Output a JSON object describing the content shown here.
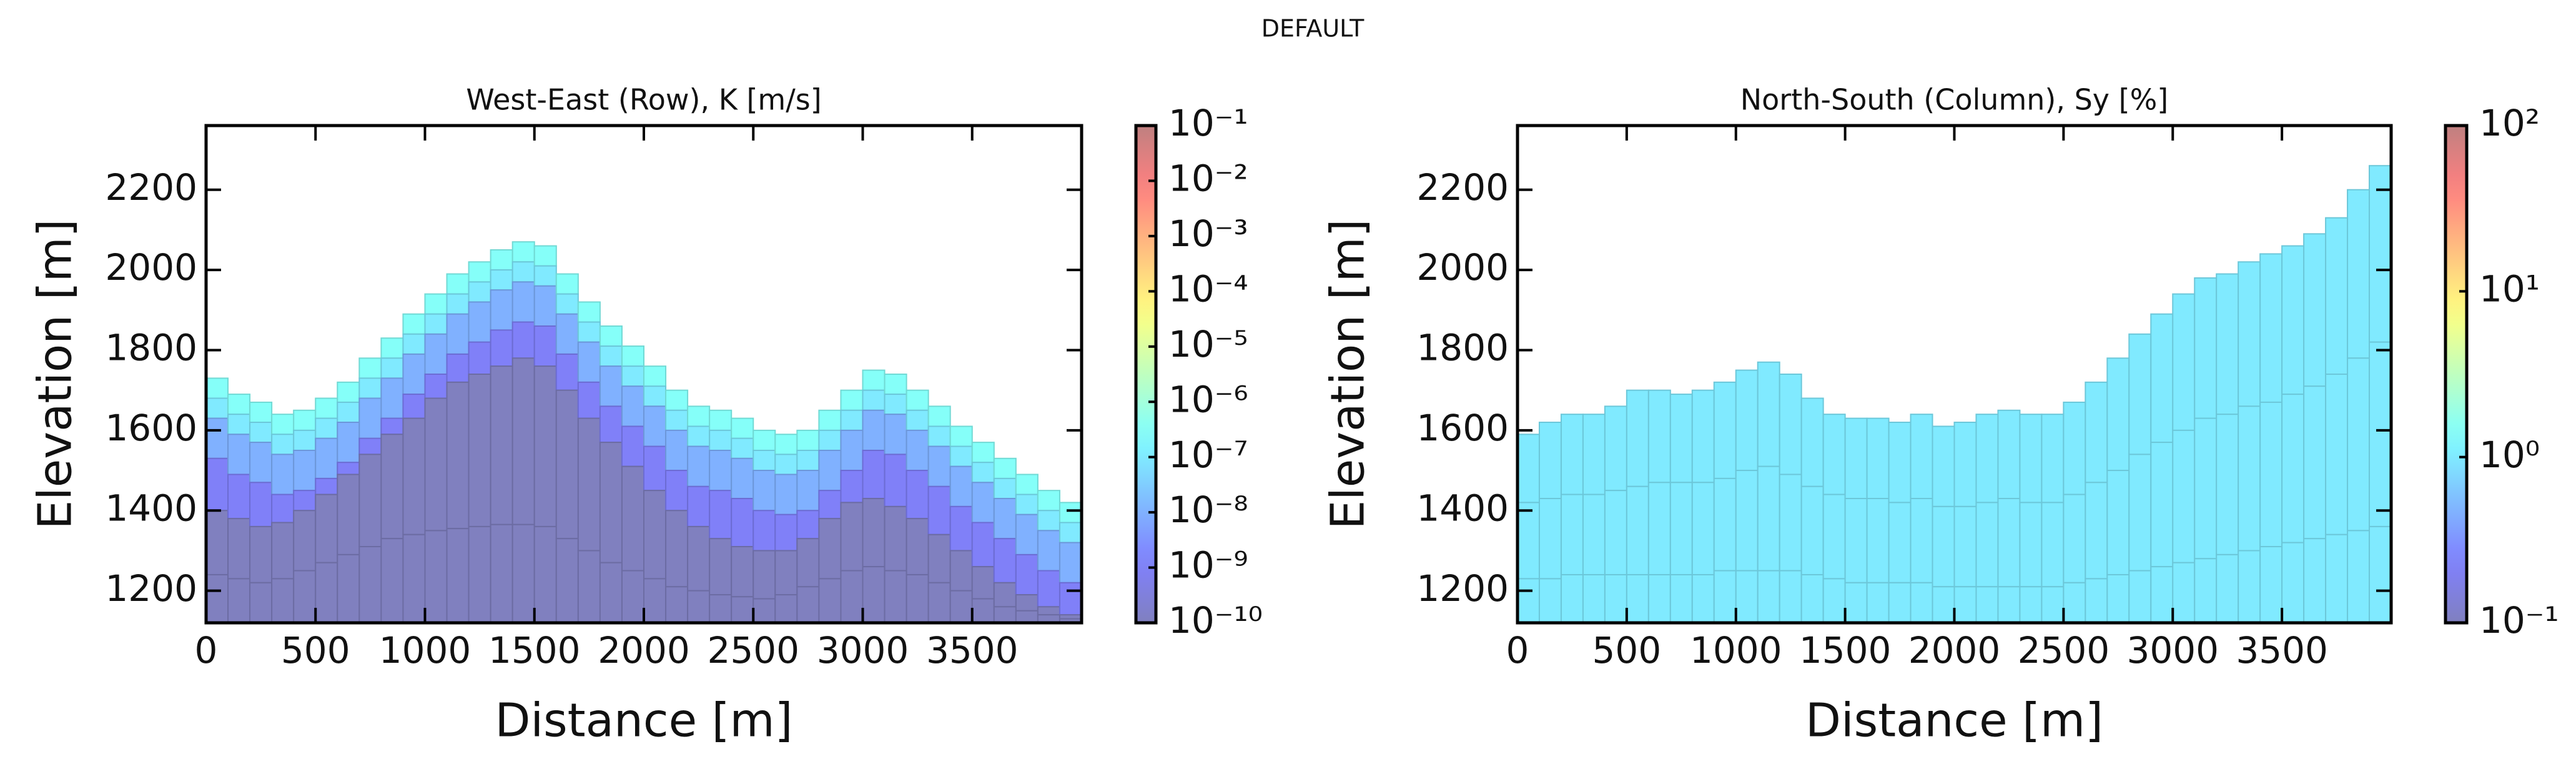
{
  "title": "DEFAULT",
  "chart_data": [
    {
      "type": "cross-section",
      "title": "West-East (Row), K [m/s]",
      "xlabel": "Distance [m]",
      "ylabel": "Elevation [m]",
      "xlim": [
        0,
        4000
      ],
      "xticks": [
        0,
        500,
        1000,
        1500,
        2000,
        2500,
        3000,
        3500
      ],
      "ylim": [
        1120,
        2360
      ],
      "yticks": [
        1200,
        1400,
        1600,
        1800,
        2000,
        2200
      ],
      "colormap": "jet",
      "alpha": 0.5,
      "log": true,
      "clim": [
        1e-10,
        0.1
      ],
      "cticks": [
        {
          "value": 1e-10,
          "label": "10⁻¹⁰"
        },
        {
          "value": 1e-09,
          "label": "10⁻⁹"
        },
        {
          "value": 1e-08,
          "label": "10⁻⁸"
        },
        {
          "value": 1e-07,
          "label": "10⁻⁷"
        },
        {
          "value": 1e-06,
          "label": "10⁻⁶"
        },
        {
          "value": 1e-05,
          "label": "10⁻⁵"
        },
        {
          "value": 0.0001,
          "label": "10⁻⁴"
        },
        {
          "value": 0.001,
          "label": "10⁻³"
        },
        {
          "value": 0.01,
          "label": "10⁻²"
        },
        {
          "value": 0.1,
          "label": "10⁻¹"
        }
      ],
      "x": [
        0,
        100,
        200,
        300,
        400,
        500,
        600,
        700,
        800,
        900,
        1000,
        1100,
        1200,
        1300,
        1400,
        1500,
        1600,
        1700,
        1800,
        1900,
        2000,
        2100,
        2200,
        2300,
        2400,
        2500,
        2600,
        2700,
        2800,
        2900,
        3000,
        3100,
        3200,
        3300,
        3400,
        3500,
        3600,
        3700,
        3800,
        3900
      ],
      "top": [
        1730,
        1690,
        1670,
        1640,
        1650,
        1680,
        1720,
        1780,
        1830,
        1890,
        1940,
        1990,
        2020,
        2050,
        2070,
        2060,
        1990,
        1920,
        1860,
        1810,
        1760,
        1700,
        1660,
        1650,
        1630,
        1600,
        1590,
        1600,
        1650,
        1700,
        1750,
        1740,
        1700,
        1660,
        1610,
        1570,
        1530,
        1490,
        1450,
        1420
      ],
      "layers": [
        {
          "value": 3e-07,
          "bottom": [
            1680,
            1640,
            1620,
            1590,
            1600,
            1630,
            1670,
            1730,
            1780,
            1840,
            1890,
            1940,
            1970,
            2000,
            2020,
            2010,
            1940,
            1870,
            1810,
            1760,
            1710,
            1650,
            1610,
            1600,
            1580,
            1550,
            1540,
            1550,
            1600,
            1650,
            1700,
            1690,
            1650,
            1610,
            1560,
            1520,
            1480,
            1440,
            1400,
            1370
          ]
        },
        {
          "value": 1e-07,
          "bottom": [
            1630,
            1590,
            1570,
            1540,
            1550,
            1580,
            1620,
            1680,
            1730,
            1790,
            1840,
            1890,
            1920,
            1950,
            1970,
            1960,
            1890,
            1820,
            1760,
            1710,
            1660,
            1600,
            1560,
            1550,
            1530,
            1500,
            1490,
            1500,
            1550,
            1600,
            1650,
            1640,
            1600,
            1560,
            1510,
            1470,
            1430,
            1390,
            1350,
            1320
          ]
        },
        {
          "value": 1e-08,
          "bottom": [
            1530,
            1490,
            1470,
            1440,
            1450,
            1480,
            1520,
            1580,
            1630,
            1690,
            1740,
            1790,
            1820,
            1850,
            1870,
            1860,
            1790,
            1720,
            1660,
            1610,
            1560,
            1500,
            1460,
            1450,
            1430,
            1400,
            1390,
            1400,
            1450,
            1500,
            1550,
            1540,
            1500,
            1460,
            1410,
            1370,
            1330,
            1290,
            1250,
            1220
          ]
        },
        {
          "value": 1e-09,
          "bottom": [
            1400,
            1380,
            1360,
            1370,
            1400,
            1440,
            1490,
            1540,
            1590,
            1630,
            1680,
            1720,
            1740,
            1760,
            1780,
            1760,
            1700,
            1630,
            1570,
            1510,
            1450,
            1400,
            1360,
            1330,
            1310,
            1300,
            1300,
            1330,
            1380,
            1420,
            1430,
            1410,
            1380,
            1340,
            1300,
            1260,
            1220,
            1190,
            1160,
            1140
          ]
        },
        {
          "value": 1e-10,
          "bottom": [
            1240,
            1230,
            1220,
            1230,
            1250,
            1270,
            1290,
            1310,
            1330,
            1340,
            1350,
            1355,
            1360,
            1365,
            1365,
            1360,
            1330,
            1300,
            1270,
            1250,
            1230,
            1210,
            1200,
            1190,
            1185,
            1180,
            1190,
            1210,
            1230,
            1250,
            1260,
            1250,
            1240,
            1220,
            1200,
            1180,
            1160,
            1150,
            1140,
            1130
          ]
        },
        {
          "value": 1e-10,
          "bottom": 1120
        }
      ]
    },
    {
      "type": "cross-section",
      "title": "North-South (Column), Sy [%]",
      "xlabel": "Distance [m]",
      "ylabel": "Elevation [m]",
      "xlim": [
        0,
        4000
      ],
      "xticks": [
        0,
        500,
        1000,
        1500,
        2000,
        2500,
        3000,
        3500
      ],
      "ylim": [
        1120,
        2360
      ],
      "yticks": [
        1200,
        1400,
        1600,
        1800,
        2000,
        2200
      ],
      "colormap": "jet",
      "alpha": 0.5,
      "log": true,
      "clim": [
        0.1,
        100
      ],
      "cticks": [
        {
          "value": 0.1,
          "label": "10⁻¹"
        },
        {
          "value": 1,
          "label": "10⁰"
        },
        {
          "value": 10,
          "label": "10¹"
        },
        {
          "value": 100,
          "label": "10²"
        }
      ],
      "x": [
        0,
        100,
        200,
        300,
        400,
        500,
        600,
        700,
        800,
        900,
        1000,
        1100,
        1200,
        1300,
        1400,
        1500,
        1600,
        1700,
        1800,
        1900,
        2000,
        2100,
        2200,
        2300,
        2400,
        2500,
        2600,
        2700,
        2800,
        2900,
        3000,
        3100,
        3200,
        3300,
        3400,
        3500,
        3600,
        3700,
        3800,
        3900
      ],
      "top": [
        1590,
        1620,
        1640,
        1640,
        1660,
        1700,
        1700,
        1690,
        1700,
        1720,
        1750,
        1770,
        1740,
        1680,
        1640,
        1630,
        1630,
        1620,
        1640,
        1610,
        1620,
        1640,
        1650,
        1640,
        1640,
        1670,
        1720,
        1780,
        1840,
        1890,
        1940,
        1980,
        1990,
        2020,
        2040,
        2060,
        2090,
        2130,
        2200,
        2260
      ],
      "layers": [
        {
          "value": 1,
          "bottom": [
            1420,
            1430,
            1440,
            1440,
            1450,
            1460,
            1470,
            1470,
            1470,
            1480,
            1500,
            1510,
            1490,
            1460,
            1440,
            1430,
            1430,
            1420,
            1430,
            1410,
            1410,
            1420,
            1430,
            1420,
            1420,
            1440,
            1470,
            1500,
            1540,
            1570,
            1600,
            1630,
            1640,
            1660,
            1670,
            1690,
            1710,
            1740,
            1780,
            1820
          ]
        },
        {
          "value": 1,
          "bottom": [
            1230,
            1230,
            1240,
            1240,
            1240,
            1240,
            1240,
            1240,
            1240,
            1250,
            1250,
            1250,
            1250,
            1240,
            1230,
            1220,
            1220,
            1220,
            1220,
            1210,
            1210,
            1210,
            1210,
            1210,
            1210,
            1220,
            1230,
            1240,
            1250,
            1260,
            1270,
            1280,
            1290,
            1300,
            1310,
            1320,
            1330,
            1340,
            1350,
            1360
          ]
        },
        {
          "value": 1,
          "bottom": 1120
        }
      ]
    }
  ]
}
